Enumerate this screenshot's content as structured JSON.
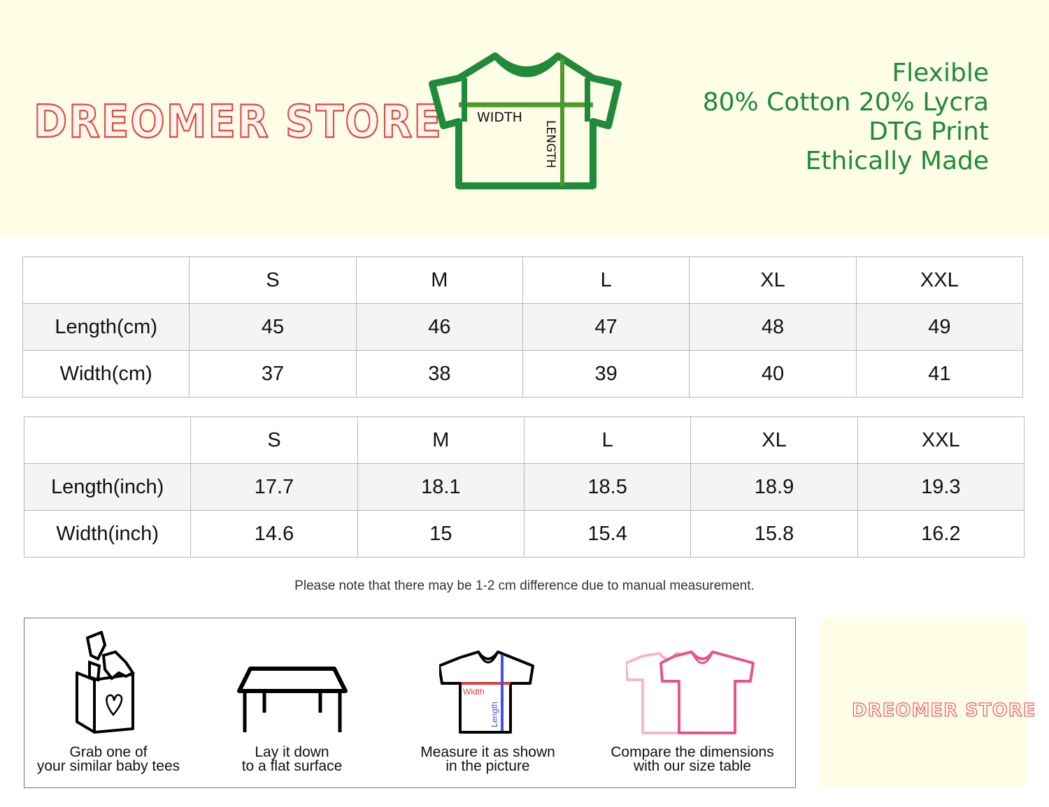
{
  "brand": {
    "logo_text": "DREOMER STORE"
  },
  "features": [
    "Flexible",
    "80% Cotton 20% Lycra",
    "DTG Print",
    "Ethically Made"
  ],
  "diagram": {
    "width_label": "WIDTH",
    "length_label": "LENGTH"
  },
  "colors": {
    "header_bg": "#fefde6",
    "green": "#1e8a3a",
    "logo_red": "#e8413f",
    "pink": "#e8538a"
  },
  "table_cm": {
    "headers": [
      "",
      "S",
      "M",
      "L",
      "XL",
      "XXL"
    ],
    "rows": [
      {
        "label": "Length(cm)",
        "values": [
          "45",
          "46",
          "47",
          "48",
          "49"
        ]
      },
      {
        "label": "Width(cm)",
        "values": [
          "37",
          "38",
          "39",
          "40",
          "41"
        ]
      }
    ]
  },
  "table_inch": {
    "headers": [
      "",
      "S",
      "M",
      "L",
      "XL",
      "XXL"
    ],
    "rows": [
      {
        "label": "Length(inch)",
        "values": [
          "17.7",
          "18.1",
          "18.5",
          "18.9",
          "19.3"
        ]
      },
      {
        "label": "Width(inch)",
        "values": [
          "14.6",
          "15",
          "15.4",
          "15.8",
          "16.2"
        ]
      }
    ]
  },
  "note": "Please note that there may be 1-2 cm difference due to manual measurement.",
  "steps": [
    {
      "icon": "clothes-box-icon",
      "line1": "Grab one of",
      "line2": "your similar baby tees"
    },
    {
      "icon": "table-icon",
      "line1": "Lay it down",
      "line2": "to a flat surface"
    },
    {
      "icon": "measure-shirt-icon",
      "line1": "Measure it as shown",
      "line2": "in the picture",
      "width_label": "Width",
      "length_label": "Length"
    },
    {
      "icon": "compare-shirts-icon",
      "line1": "Compare the dimensions",
      "line2": "with our size table"
    }
  ]
}
